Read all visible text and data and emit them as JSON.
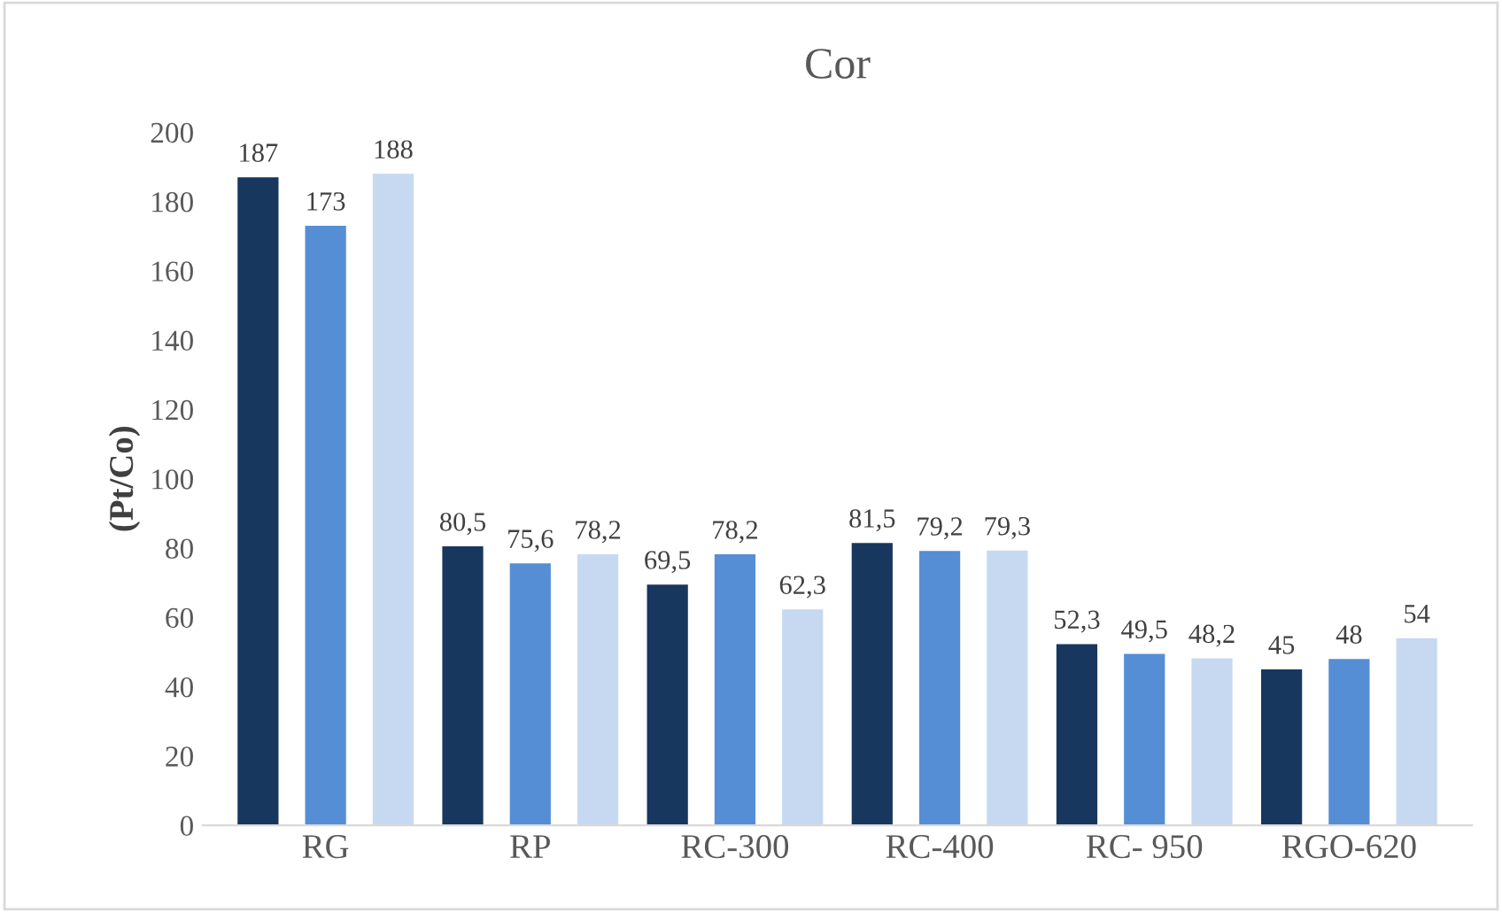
{
  "chart_data": {
    "type": "bar",
    "title": "Cor",
    "ylabel": "(Pt/Co)",
    "categories": [
      "RG",
      "RP",
      "RC-300",
      "RC-400",
      "RC- 950",
      "RGO-620"
    ],
    "series": [
      {
        "color": "#17375e",
        "values": [
          187,
          80.5,
          69.5,
          81.5,
          52.3,
          45
        ],
        "value_labels": [
          "187",
          "80,5",
          "69,5",
          "81,5",
          "52,3",
          "45"
        ]
      },
      {
        "color": "#558ed5",
        "values": [
          173,
          75.6,
          78.2,
          79.2,
          49.5,
          48
        ],
        "value_labels": [
          "173",
          "75,6",
          "78,2",
          "79,2",
          "49,5",
          "48"
        ]
      },
      {
        "color": "#c6d9f1",
        "values": [
          188,
          78.2,
          62.3,
          79.3,
          48.2,
          54
        ],
        "value_labels": [
          "188",
          "78,2",
          "62,3",
          "79,3",
          "48,2",
          "54"
        ]
      }
    ],
    "ylim": [
      0,
      200
    ],
    "yticks": [
      0,
      20,
      40,
      60,
      80,
      100,
      120,
      140,
      160,
      180,
      200
    ],
    "grid": false,
    "legend": false
  }
}
